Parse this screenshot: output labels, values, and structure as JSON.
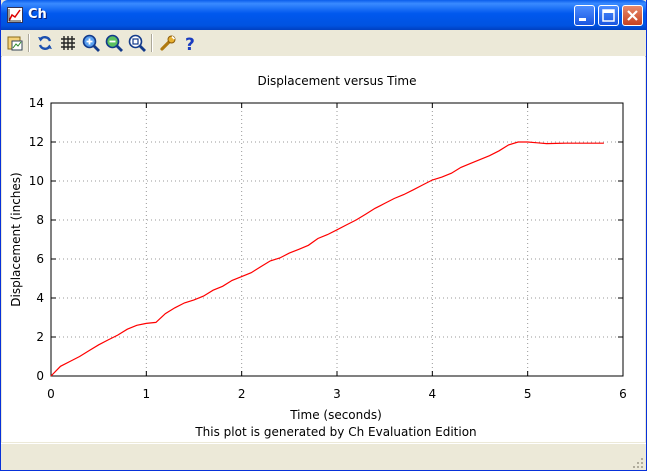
{
  "window": {
    "title": "Ch"
  },
  "toolbar": {
    "buttons": [
      {
        "name": "open-icon"
      },
      {
        "name": "refresh-icon"
      },
      {
        "name": "grid-icon"
      },
      {
        "name": "zoom-in-icon"
      },
      {
        "name": "zoom-out-icon"
      },
      {
        "name": "zoom-fit-icon"
      },
      {
        "name": "options-wrench-icon"
      },
      {
        "name": "help-icon"
      }
    ]
  },
  "chart_data": {
    "type": "line",
    "title": "Displacement versus Time",
    "xlabel": "Time (seconds)",
    "ylabel": "Displacement (inches)",
    "footnote": "This plot is generated by Ch Evaluation Edition",
    "xlim": [
      0,
      6
    ],
    "ylim": [
      0,
      14
    ],
    "xticks": [
      "0",
      "1",
      "2",
      "3",
      "4",
      "5",
      "6"
    ],
    "yticks": [
      "0",
      "2",
      "4",
      "6",
      "8",
      "10",
      "12",
      "14"
    ],
    "grid": true,
    "color": "#FF0000",
    "series": [
      {
        "x": [
          0,
          0.1,
          0.2,
          0.3,
          0.4,
          0.5,
          0.6,
          0.7,
          0.8,
          0.9,
          1.0,
          1.1,
          1.2,
          1.3,
          1.4,
          1.5,
          1.6,
          1.7,
          1.8,
          1.9,
          2.0,
          2.1,
          2.2,
          2.3,
          2.4,
          2.5,
          2.6,
          2.7,
          2.8,
          2.9,
          3.0,
          3.1,
          3.2,
          3.3,
          3.4,
          3.5,
          3.6,
          3.7,
          3.8,
          3.9,
          4.0,
          4.1,
          4.2,
          4.3,
          4.4,
          4.5,
          4.6,
          4.7,
          4.8,
          4.9,
          5.0,
          5.1,
          5.2,
          5.3,
          5.4,
          5.5,
          5.6,
          5.7,
          5.8
        ],
        "y": [
          0,
          0.5,
          0.75,
          1.0,
          1.3,
          1.6,
          1.85,
          2.1,
          2.4,
          2.6,
          2.7,
          2.75,
          3.2,
          3.5,
          3.75,
          3.9,
          4.1,
          4.4,
          4.6,
          4.9,
          5.1,
          5.3,
          5.6,
          5.9,
          6.05,
          6.3,
          6.5,
          6.7,
          7.05,
          7.25,
          7.5,
          7.75,
          8.0,
          8.3,
          8.6,
          8.85,
          9.1,
          9.3,
          9.55,
          9.8,
          10.05,
          10.2,
          10.4,
          10.7,
          10.9,
          11.1,
          11.3,
          11.55,
          11.85,
          12.0,
          12.0,
          11.96,
          11.92,
          11.93,
          11.94,
          11.94,
          11.94,
          11.94,
          11.94
        ]
      }
    ]
  }
}
